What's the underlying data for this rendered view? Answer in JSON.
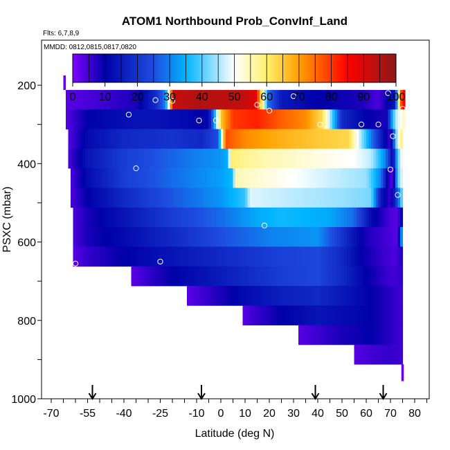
{
  "chart_data": {
    "type": "heatmap",
    "title": "ATOM1 Northbound Prob_ConvInf_Land",
    "subtitle_flights": "Flts: 6,7,8,9",
    "subtitle_dates": "MMDD: 0812,0815,0817,0820",
    "xlabel": "Latitude (deg N)",
    "ylabel": "PSXC (mbar)",
    "xlim": [
      -70,
      85
    ],
    "ylim": [
      1000,
      100
    ],
    "x_tick_labels": [
      "-70",
      "-55",
      "-40",
      "-25",
      "-10",
      "0",
      "10",
      "20",
      "30",
      "40",
      "50",
      "60",
      "70",
      "80"
    ],
    "x_tick_values": [
      -70,
      -55,
      -40,
      -25,
      -10,
      0,
      10,
      20,
      30,
      40,
      50,
      60,
      70,
      80
    ],
    "y_tick_labels": [
      "200",
      "400",
      "600",
      "800",
      "1000"
    ],
    "y_tick_values": [
      200,
      400,
      600,
      800,
      1000
    ],
    "colorbar": {
      "min": 0,
      "max": 100,
      "tick_labels": [
        "0",
        "10",
        "20",
        "30",
        "40",
        "50",
        "60",
        "70",
        "80",
        "90",
        "100"
      ],
      "colors": [
        "#7f00ff",
        "#0000a8",
        "#1e4ce0",
        "#00b4ff",
        "#ffffff",
        "#fff06e",
        "#ffa000",
        "#ff0000",
        "#8b1a1a"
      ]
    },
    "layers": [
      {
        "p_top": 212,
        "p_bottom": 262,
        "x_start": -64,
        "x_end": 76,
        "knots": [
          [
            -64,
            3
          ],
          [
            -50,
            5
          ],
          [
            -35,
            8
          ],
          [
            -27,
            18
          ],
          [
            -23,
            30
          ],
          [
            -21,
            55
          ],
          [
            -20,
            92
          ],
          [
            -10,
            95
          ],
          [
            0,
            94
          ],
          [
            10,
            93
          ],
          [
            15,
            88
          ],
          [
            16,
            65
          ],
          [
            18,
            55
          ],
          [
            19,
            30
          ],
          [
            25,
            15
          ],
          [
            40,
            10
          ],
          [
            58,
            8
          ],
          [
            65,
            4
          ],
          [
            72,
            15
          ],
          [
            74,
            75
          ],
          [
            76,
            88
          ]
        ]
      },
      {
        "p_top": 262,
        "p_bottom": 312,
        "x_start": -64,
        "x_end": 76,
        "knots": [
          [
            -64,
            3
          ],
          [
            -55,
            10
          ],
          [
            -45,
            12
          ],
          [
            -30,
            14
          ],
          [
            -15,
            12
          ],
          [
            -8,
            10
          ],
          [
            -5,
            12
          ],
          [
            -3,
            30
          ],
          [
            0,
            65
          ],
          [
            5,
            80
          ],
          [
            15,
            82
          ],
          [
            25,
            76
          ],
          [
            35,
            72
          ],
          [
            42,
            62
          ],
          [
            45,
            45
          ],
          [
            50,
            18
          ],
          [
            60,
            10
          ],
          [
            68,
            8
          ],
          [
            72,
            45
          ],
          [
            76,
            55
          ]
        ]
      },
      {
        "p_top": 312,
        "p_bottom": 362,
        "x_start": -63,
        "x_end": 75,
        "knots": [
          [
            -63,
            3
          ],
          [
            -55,
            12
          ],
          [
            -40,
            18
          ],
          [
            -20,
            20
          ],
          [
            -8,
            18
          ],
          [
            -1,
            25
          ],
          [
            0,
            45
          ],
          [
            2,
            78
          ],
          [
            10,
            72
          ],
          [
            25,
            68
          ],
          [
            40,
            65
          ],
          [
            53,
            63
          ],
          [
            55,
            55
          ],
          [
            62,
            30
          ],
          [
            68,
            10
          ],
          [
            70,
            5
          ],
          [
            73,
            50
          ],
          [
            75,
            60
          ]
        ]
      },
      {
        "p_top": 362,
        "p_bottom": 412,
        "x_start": -63,
        "x_end": 75,
        "knots": [
          [
            -63,
            4
          ],
          [
            -55,
            14
          ],
          [
            -40,
            22
          ],
          [
            -25,
            26
          ],
          [
            -10,
            30
          ],
          [
            0,
            32
          ],
          [
            3,
            35
          ],
          [
            4,
            60
          ],
          [
            8,
            58
          ],
          [
            20,
            55
          ],
          [
            40,
            52
          ],
          [
            55,
            50
          ],
          [
            62,
            46
          ],
          [
            68,
            30
          ],
          [
            71,
            10
          ],
          [
            73,
            40
          ],
          [
            75,
            52
          ]
        ]
      },
      {
        "p_top": 412,
        "p_bottom": 462,
        "x_start": -62,
        "x_end": 75,
        "knots": [
          [
            -62,
            4
          ],
          [
            -55,
            12
          ],
          [
            -40,
            22
          ],
          [
            -20,
            28
          ],
          [
            0,
            33
          ],
          [
            5,
            36
          ],
          [
            6,
            55
          ],
          [
            20,
            52
          ],
          [
            40,
            48
          ],
          [
            60,
            44
          ],
          [
            66,
            30
          ],
          [
            69,
            8
          ],
          [
            71,
            3
          ],
          [
            73,
            40
          ],
          [
            75,
            50
          ]
        ]
      },
      {
        "p_top": 462,
        "p_bottom": 512,
        "x_start": -62,
        "x_end": 75,
        "knots": [
          [
            -62,
            4
          ],
          [
            -55,
            10
          ],
          [
            -40,
            18
          ],
          [
            -20,
            26
          ],
          [
            0,
            32
          ],
          [
            10,
            38
          ],
          [
            12,
            48
          ],
          [
            30,
            46
          ],
          [
            50,
            44
          ],
          [
            62,
            42
          ],
          [
            66,
            15
          ],
          [
            70,
            5
          ],
          [
            73,
            25
          ],
          [
            75,
            45
          ]
        ]
      },
      {
        "p_top": 512,
        "p_bottom": 562,
        "x_start": -61,
        "x_end": 75,
        "knots": [
          [
            -61,
            4
          ],
          [
            -55,
            8
          ],
          [
            -40,
            14
          ],
          [
            -20,
            22
          ],
          [
            0,
            28
          ],
          [
            15,
            34
          ],
          [
            25,
            36
          ],
          [
            45,
            34
          ],
          [
            55,
            28
          ],
          [
            62,
            12
          ],
          [
            70,
            4
          ],
          [
            73,
            3
          ],
          [
            75,
            15
          ]
        ]
      },
      {
        "p_top": 562,
        "p_bottom": 612,
        "x_start": -61,
        "x_end": 75,
        "knots": [
          [
            -61,
            4
          ],
          [
            -55,
            8
          ],
          [
            -40,
            12
          ],
          [
            -20,
            18
          ],
          [
            0,
            25
          ],
          [
            20,
            30
          ],
          [
            40,
            32
          ],
          [
            50,
            20
          ],
          [
            60,
            8
          ],
          [
            70,
            4
          ],
          [
            73,
            3
          ],
          [
            75,
            40
          ]
        ]
      },
      {
        "p_top": 612,
        "p_bottom": 662,
        "x_start": -61,
        "x_end": 75,
        "knots": [
          [
            -61,
            3
          ],
          [
            -55,
            6
          ],
          [
            -40,
            10
          ],
          [
            -20,
            14
          ],
          [
            0,
            18
          ],
          [
            20,
            22
          ],
          [
            40,
            24
          ],
          [
            50,
            18
          ],
          [
            58,
            10
          ],
          [
            66,
            6
          ],
          [
            72,
            4
          ],
          [
            75,
            8
          ]
        ]
      },
      {
        "p_top": 662,
        "p_bottom": 712,
        "x_start": -37,
        "x_end": 75,
        "knots": [
          [
            -37,
            3
          ],
          [
            -30,
            6
          ],
          [
            -20,
            10
          ],
          [
            -5,
            14
          ],
          [
            10,
            18
          ],
          [
            25,
            22
          ],
          [
            40,
            24
          ],
          [
            50,
            18
          ],
          [
            60,
            10
          ],
          [
            70,
            5
          ],
          [
            75,
            6
          ]
        ]
      },
      {
        "p_top": 712,
        "p_bottom": 762,
        "x_start": -14,
        "x_end": 75,
        "knots": [
          [
            -14,
            3
          ],
          [
            -8,
            5
          ],
          [
            0,
            8
          ],
          [
            10,
            12
          ],
          [
            25,
            16
          ],
          [
            40,
            18
          ],
          [
            52,
            14
          ],
          [
            62,
            10
          ],
          [
            72,
            6
          ],
          [
            75,
            5
          ]
        ]
      },
      {
        "p_top": 762,
        "p_bottom": 812,
        "x_start": 9,
        "x_end": 75,
        "knots": [
          [
            9,
            3
          ],
          [
            15,
            6
          ],
          [
            25,
            10
          ],
          [
            40,
            14
          ],
          [
            52,
            12
          ],
          [
            62,
            10
          ],
          [
            72,
            6
          ],
          [
            75,
            5
          ]
        ]
      },
      {
        "p_top": 812,
        "p_bottom": 862,
        "x_start": 32,
        "x_end": 75,
        "knots": [
          [
            32,
            3
          ],
          [
            38,
            5
          ],
          [
            50,
            8
          ],
          [
            62,
            10
          ],
          [
            72,
            6
          ],
          [
            75,
            5
          ]
        ]
      },
      {
        "p_top": 862,
        "p_bottom": 912,
        "x_start": 55,
        "x_end": 75,
        "knots": [
          [
            55,
            3
          ],
          [
            62,
            5
          ],
          [
            70,
            6
          ],
          [
            75,
            5
          ]
        ]
      }
    ],
    "extra_bits": [
      {
        "x0": -65,
        "x1": -64,
        "p0": 175,
        "p1": 212,
        "value": 2
      },
      {
        "x0": 74.5,
        "x1": 75.5,
        "p0": 912,
        "p1": 955,
        "value": 2
      }
    ],
    "markers": [
      [
        -27,
        238
      ],
      [
        -20,
        240
      ],
      [
        -38,
        275
      ],
      [
        -9,
        290
      ],
      [
        -2,
        290
      ],
      [
        20,
        265
      ],
      [
        15,
        250
      ],
      [
        30,
        228
      ],
      [
        41,
        300
      ],
      [
        58,
        300
      ],
      [
        65,
        300
      ],
      [
        69,
        220
      ],
      [
        71,
        330
      ],
      [
        75,
        260
      ],
      [
        -35,
        412
      ],
      [
        70,
        415
      ],
      [
        73,
        480
      ],
      [
        18,
        558
      ],
      [
        -25,
        650
      ],
      [
        -60,
        655
      ]
    ],
    "arrows_x": [
      -53,
      -8,
      39,
      67
    ]
  }
}
